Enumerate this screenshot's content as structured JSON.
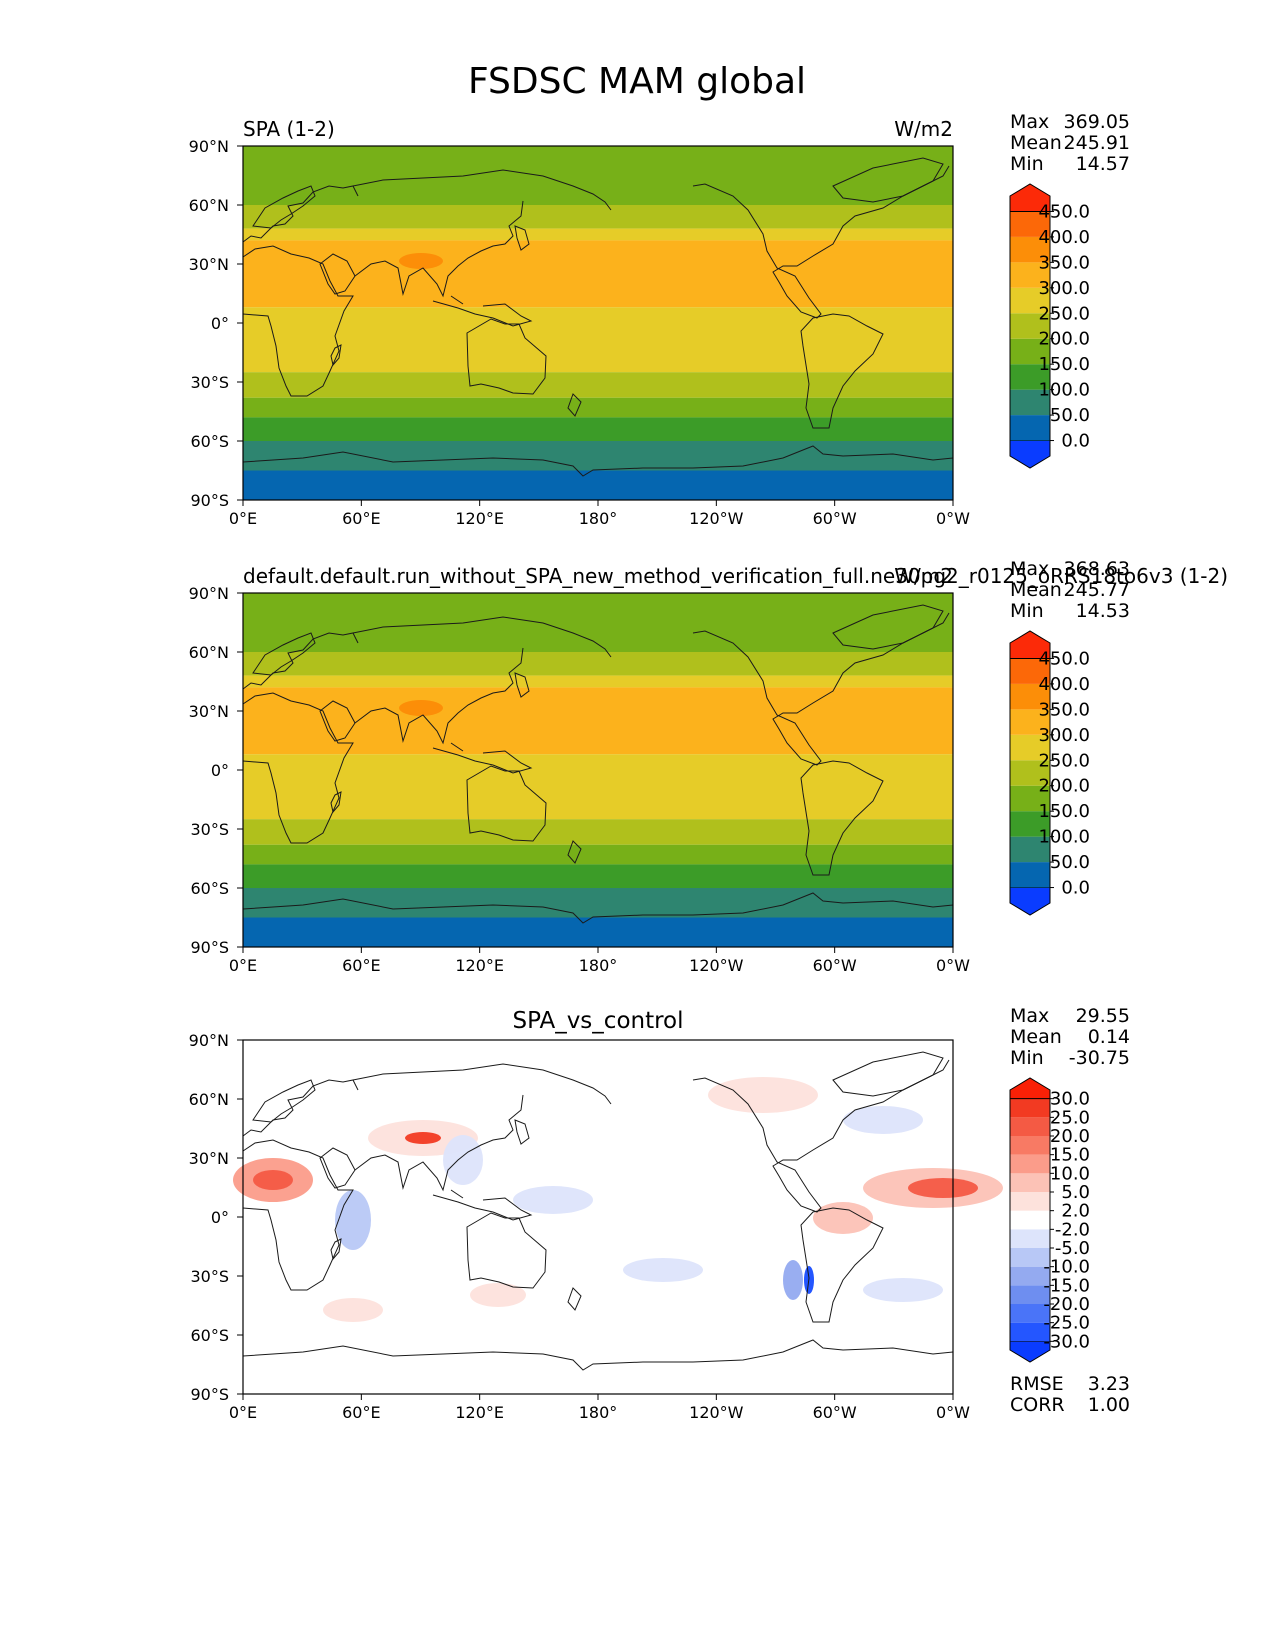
{
  "figure": {
    "title": "FSDSC MAM global"
  },
  "axes": {
    "x_ticks": [
      "0°E",
      "60°E",
      "120°E",
      "180°",
      "120°W",
      "60°W",
      "0°W"
    ],
    "y_ticks": [
      "90°N",
      "60°N",
      "30°N",
      "0°",
      "30°S",
      "60°S",
      "90°S"
    ]
  },
  "panels": [
    {
      "left_title": "SPA (1-2)",
      "center_title": "",
      "right_title": "W/m2",
      "stats": {
        "labels": [
          "Max",
          "Mean",
          "Min"
        ],
        "values": [
          "369.05",
          "245.91",
          "14.57"
        ]
      },
      "colorbar": {
        "labels": [
          "450.0",
          "400.0",
          "350.0",
          "300.0",
          "250.0",
          "200.0",
          "150.0",
          "100.0",
          "50.0",
          "0.0"
        ],
        "colors": [
          "#0a3cff",
          "#0566b0",
          "#2e8570",
          "#3c9c28",
          "#77b018",
          "#b0c01c",
          "#e6cc28",
          "#fcb21c",
          "#fc8e08",
          "#fc6808",
          "#fc2a08"
        ]
      }
    },
    {
      "left_title": "default.default.run_without_SPA_new_method_verification_full.ne30pg2_r0125_oRRS18to6v3 (1-2)",
      "center_title": "",
      "right_title": "W/m2",
      "stats": {
        "labels": [
          "Max",
          "Mean",
          "Min"
        ],
        "values": [
          "368.63",
          "245.77",
          "14.53"
        ]
      },
      "colorbar": {
        "labels": [
          "450.0",
          "400.0",
          "350.0",
          "300.0",
          "250.0",
          "200.0",
          "150.0",
          "100.0",
          "50.0",
          "0.0"
        ],
        "colors": [
          "#0a3cff",
          "#0566b0",
          "#2e8570",
          "#3c9c28",
          "#77b018",
          "#b0c01c",
          "#e6cc28",
          "#fcb21c",
          "#fc8e08",
          "#fc6808",
          "#fc2a08"
        ]
      }
    },
    {
      "left_title": "",
      "center_title": "SPA_vs_control",
      "right_title": "",
      "stats": {
        "labels": [
          "Max",
          "Mean",
          "Min"
        ],
        "values": [
          "29.55",
          "0.14",
          "-30.75"
        ]
      },
      "colorbar": {
        "labels": [
          "30.0",
          "25.0",
          "20.0",
          "15.0",
          "10.0",
          "5.0",
          "2.0",
          "-2.0",
          "-5.0",
          "-10.0",
          "-15.0",
          "-20.0",
          "-25.0",
          "-30.0"
        ],
        "colors": [
          "#0a3cff",
          "#2456ff",
          "#4a74f8",
          "#6e8ef0",
          "#94aaf0",
          "#b8c8f6",
          "#dde4fb",
          "#ffffff",
          "#fde2dc",
          "#fcc2b6",
          "#fb9c8a",
          "#f87a64",
          "#f45a44",
          "#f23a22",
          "#fa2006"
        ]
      },
      "rmse": {
        "label": "RMSE",
        "value": "3.23"
      },
      "corr": {
        "label": "CORR",
        "value": "1.00"
      }
    }
  ],
  "legend_colors": {
    "band_90S_75S": "#0566b0",
    "band_75S_60S": "#2e8570",
    "band_60S_48S": "#3c9c28",
    "band_48S_38S": "#77b018",
    "band_38S_25S": "#b0c01c",
    "band_25S_8N": "#e6cc28",
    "band_8N_42N": "#fcb21c",
    "band_arctic": "#77b018"
  }
}
